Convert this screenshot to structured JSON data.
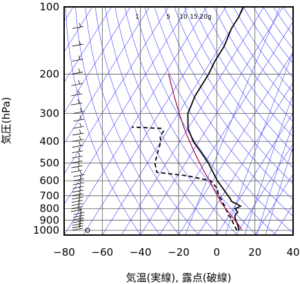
{
  "chart_data": {
    "type": "line",
    "title": "",
    "xlabel": "気温(実線), 露点(破線)",
    "ylabel": "気圧(hPa)",
    "xlim": [
      -80,
      40
    ],
    "ylim": [
      1050,
      100
    ],
    "y_scale": "log",
    "grid": true,
    "x_ticks": [
      "−80",
      "−60",
      "−40",
      "−20",
      "0",
      "20",
      "40"
    ],
    "x_tick_values": [
      -80,
      -60,
      -40,
      -20,
      0,
      20,
      40
    ],
    "y_ticks": [
      "100",
      "200",
      "300",
      "400",
      "500",
      "600",
      "700",
      "800",
      "900",
      "1000"
    ],
    "y_tick_values": [
      100,
      200,
      300,
      400,
      500,
      600,
      700,
      800,
      900,
      1000
    ],
    "mixing_ratio_labels": [
      "1",
      "5",
      "10",
      "15",
      "20g"
    ],
    "mixing_ratio_values": [
      1,
      5,
      10,
      15,
      20
    ],
    "series": [
      {
        "style": "solid",
        "color": "#000000",
        "p": [
          1000,
          975,
          950,
          925,
          900,
          870,
          850,
          830,
          800,
          780,
          760,
          750,
          740,
          720,
          700,
          650,
          600,
          550,
          500,
          450,
          400,
          350,
          300,
          250,
          200,
          175,
          150,
          125,
          110,
          100
        ],
        "t": [
          10,
          9,
          7.8,
          6.5,
          5,
          3.5,
          3,
          3.5,
          1,
          3,
          0,
          -2,
          -3.5,
          -5,
          -7,
          -12,
          -17.5,
          -22.5,
          -28,
          -35,
          -43,
          -50,
          -55,
          -57,
          -57,
          -58,
          -58,
          -60,
          -60,
          -61
        ]
      },
      {
        "style": "dashed",
        "color": "#000000",
        "p": [
          1000,
          975,
          950,
          925,
          900,
          870,
          850,
          830,
          800,
          780,
          760,
          740,
          700,
          650,
          600,
          570,
          550,
          500,
          450,
          400,
          380,
          360,
          350,
          345
        ],
        "t": [
          9,
          7.5,
          6,
          4.5,
          3,
          1,
          -1,
          -2,
          -4,
          -5,
          -7,
          -8,
          -12,
          -15,
          -21,
          -35,
          -52,
          -56,
          -58,
          -60,
          -62,
          -62,
          -64,
          -80
        ]
      },
      {
        "style": "solid",
        "color": "#a0004a",
        "p": [
          1000,
          950,
          900,
          850,
          800,
          750,
          700,
          650,
          600,
          550,
          500,
          450,
          400,
          350,
          300,
          250,
          200
        ],
        "t": [
          11.5,
          8.5,
          4.5,
          0.5,
          -4,
          -8.5,
          -12.5,
          -17,
          -21.5,
          -27,
          -32.5,
          -38.5,
          -45,
          -52,
          -59.5,
          -68,
          -78
        ]
      }
    ]
  }
}
